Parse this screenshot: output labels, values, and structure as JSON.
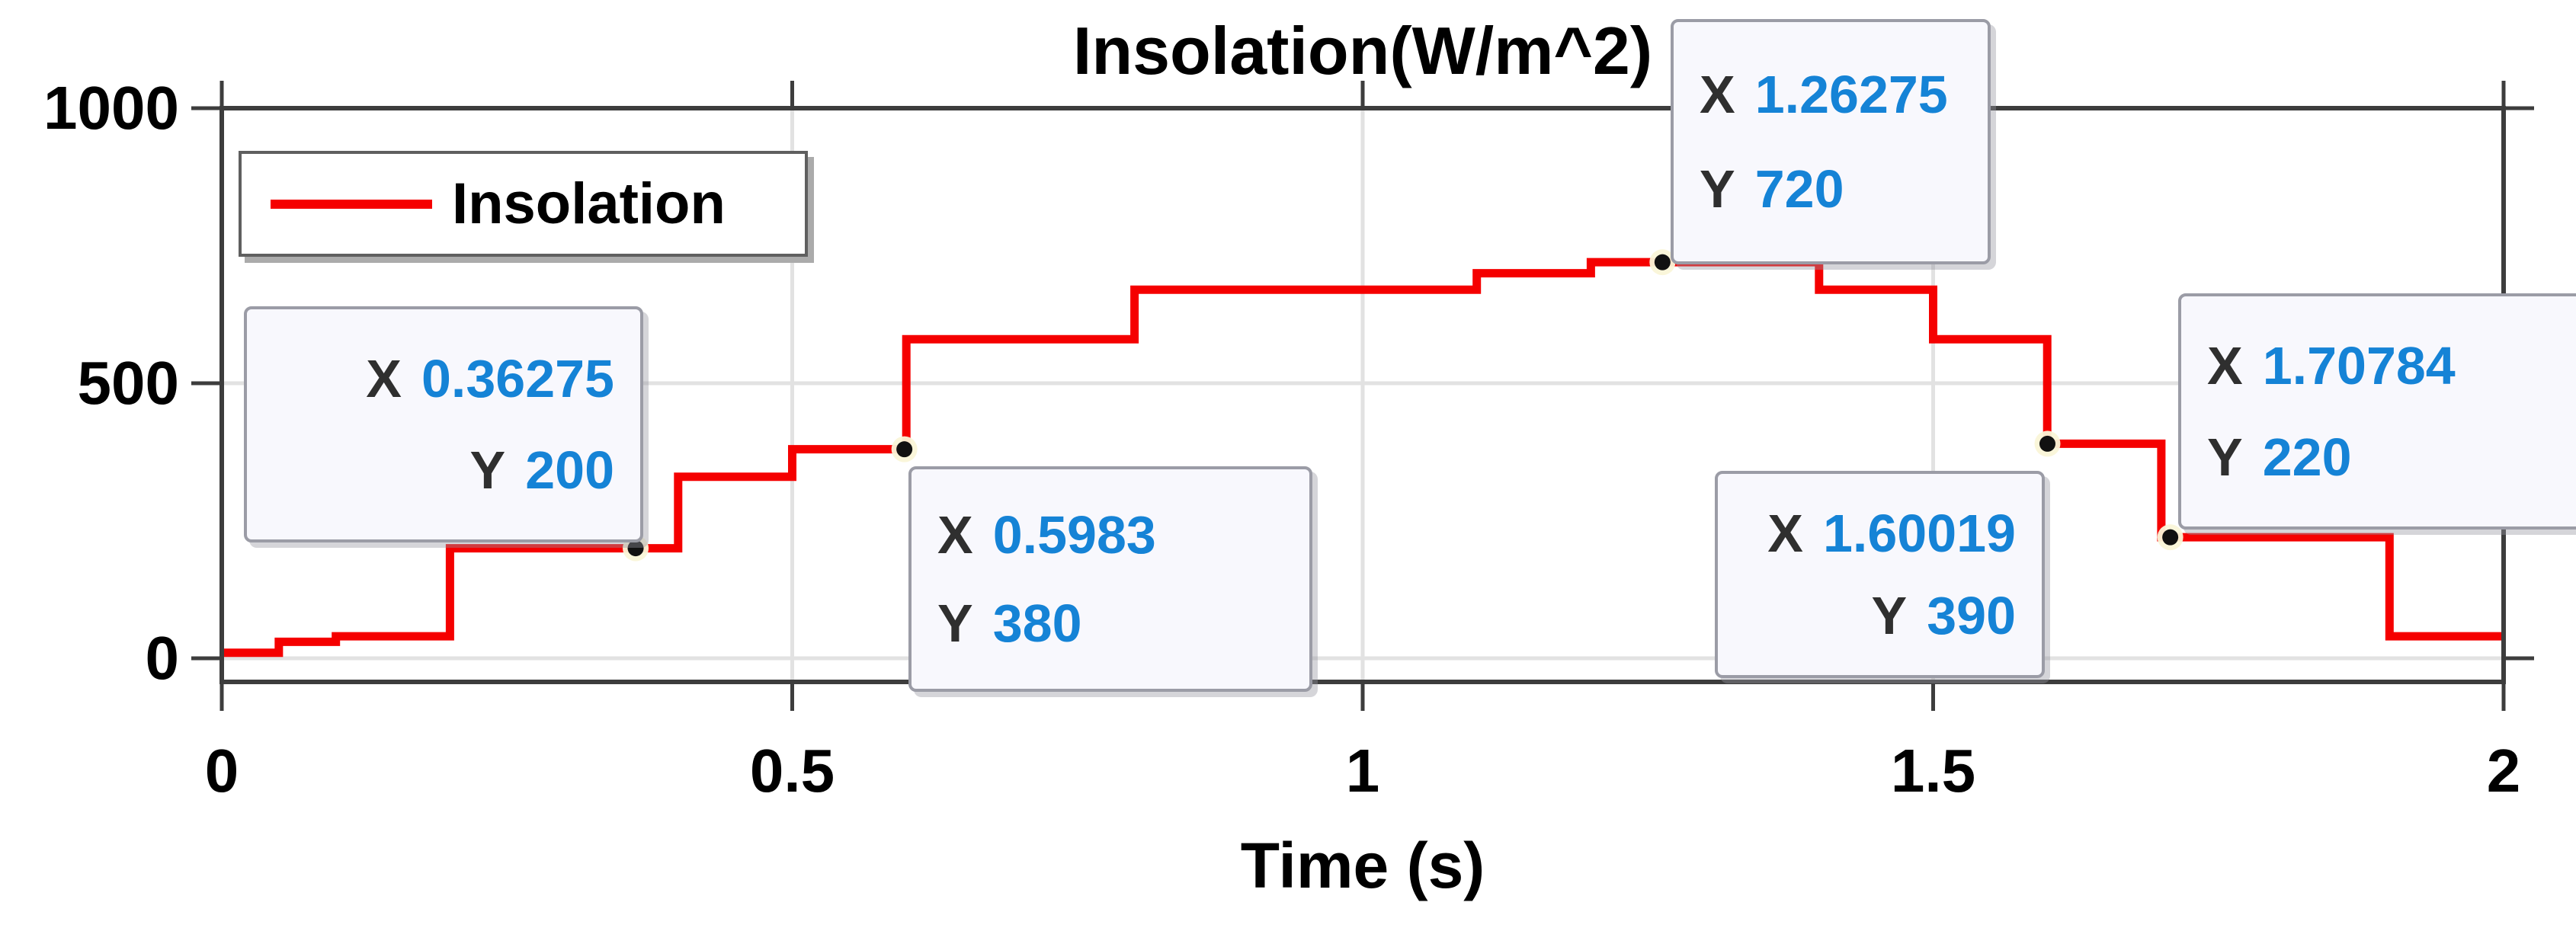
{
  "title": "Insolation(W/m^2)",
  "x_axis_label": "Time (s)",
  "legend": {
    "label": "Insolation",
    "line_color": "#f50000"
  },
  "axes": {
    "x": {
      "tick_labels": [
        "0",
        "0.5",
        "1",
        "1.5",
        "2"
      ],
      "tick_values": [
        0,
        0.5,
        1,
        1.5,
        2
      ],
      "gridlines": [
        0.5,
        1,
        1.5
      ],
      "lim": [
        0,
        2
      ]
    },
    "y": {
      "tick_labels": [
        "0",
        "500",
        "1000"
      ],
      "tick_values": [
        0,
        500,
        1000
      ],
      "gridlines": [
        0,
        500
      ],
      "lim": [
        -45,
        1000
      ]
    }
  },
  "tooltips": [
    {
      "x_key": "X",
      "x_value": "0.36275",
      "y_key": "Y",
      "y_value": "200",
      "align": "right"
    },
    {
      "x_key": "X",
      "x_value": "0.5983",
      "y_key": "Y",
      "y_value": "380",
      "align": "left"
    },
    {
      "x_key": "X",
      "x_value": "1.26275",
      "y_key": "Y",
      "y_value": "720",
      "align": "left"
    },
    {
      "x_key": "X",
      "x_value": "1.60019",
      "y_key": "Y",
      "y_value": "390",
      "align": "right"
    },
    {
      "x_key": "X",
      "x_value": "1.70784",
      "y_key": "Y",
      "y_value": "220",
      "align": "left"
    }
  ],
  "chart_data": {
    "type": "line",
    "subtype": "stairs",
    "title": "Insolation(W/m^2)",
    "xlabel": "Time (s)",
    "ylabel": "",
    "xlim": [
      0,
      2
    ],
    "ylim": [
      -45,
      1000
    ],
    "grid": true,
    "legend_position": "top-left",
    "series": [
      {
        "name": "Insolation",
        "color": "#f50000",
        "steps": [
          [
            0,
            10
          ],
          [
            0.05,
            30
          ],
          [
            0.1,
            40
          ],
          [
            0.2,
            200
          ],
          [
            0.4,
            330
          ],
          [
            0.5,
            380
          ],
          [
            0.6,
            580
          ],
          [
            0.8,
            670
          ],
          [
            1.1,
            700
          ],
          [
            1.2,
            720
          ],
          [
            1.4,
            670
          ],
          [
            1.5,
            580
          ],
          [
            1.6,
            390
          ],
          [
            1.7,
            220
          ],
          [
            1.9,
            40
          ]
        ],
        "end_time": 2
      }
    ],
    "markers": [
      {
        "x": 0.36275,
        "y": 200
      },
      {
        "x": 0.5983,
        "y": 380
      },
      {
        "x": 1.26275,
        "y": 720
      },
      {
        "x": 1.60019,
        "y": 390
      },
      {
        "x": 1.70784,
        "y": 220
      }
    ]
  },
  "colors": {
    "line": "#f50000",
    "tooltip_value": "#1583d6",
    "tooltip_bg": "#f8f8fd",
    "grid": "#e2e2e2",
    "spine": "#3d3d3d",
    "marker_fill": "#111111",
    "marker_halo": "#faf5d8"
  }
}
